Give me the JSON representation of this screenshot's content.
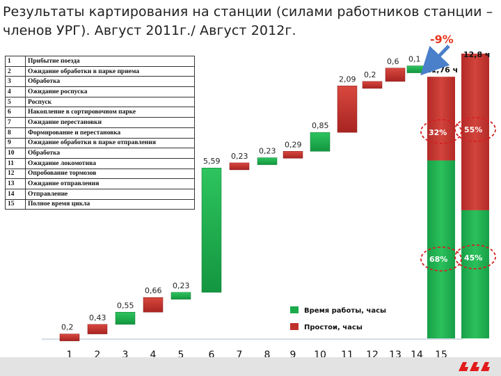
{
  "title": "Результаты картирования на станции (силами работников станции – членов УРГ). Август 2011г./ Август 2012г.",
  "steps_table": [
    {
      "num": "1",
      "label": "Прибытие поезда"
    },
    {
      "num": "2",
      "label": "Ожидание обработки в парке приема"
    },
    {
      "num": "3",
      "label": "Обработка"
    },
    {
      "num": "4",
      "label": "Ожидание роспуска"
    },
    {
      "num": "5",
      "label": "Роспуск"
    },
    {
      "num": "6",
      "label": "Накопление в сортировочном парке"
    },
    {
      "num": "7",
      "label": "Ожидание перестановки"
    },
    {
      "num": "8",
      "label": "Формирование и перестановка"
    },
    {
      "num": "9",
      "label": "Ожидание обработки в парке отправления"
    },
    {
      "num": "10",
      "label": "Обработка"
    },
    {
      "num": "11",
      "label": "Ожидание локомотива"
    },
    {
      "num": "12",
      "label": "Опробование тормозов"
    },
    {
      "num": "13",
      "label": "Ожидание отправления"
    },
    {
      "num": "14",
      "label": "Отправление"
    },
    {
      "num": "15",
      "label": "Полное время цикла"
    }
  ],
  "chart_data": {
    "type": "bar",
    "subtype": "waterfall",
    "categories": [
      "1",
      "2",
      "3",
      "4",
      "5",
      "6",
      "7",
      "8",
      "9",
      "10",
      "11",
      "12",
      "13",
      "14",
      "15"
    ],
    "steps": [
      {
        "x": "1",
        "value": 0.2,
        "label": "0,2",
        "kind": "idle"
      },
      {
        "x": "2",
        "value": 0.43,
        "label": "0,43",
        "kind": "idle"
      },
      {
        "x": "3",
        "value": 0.55,
        "label": "0,55",
        "kind": "work"
      },
      {
        "x": "4",
        "value": 0.66,
        "label": "0,66",
        "kind": "idle"
      },
      {
        "x": "5",
        "value": 0.23,
        "label": "0,23",
        "kind": "work"
      },
      {
        "x": "6",
        "value": 5.59,
        "label": "5,59",
        "kind": "work"
      },
      {
        "x": "7",
        "value": 0.23,
        "label": "0,23",
        "kind": "idle"
      },
      {
        "x": "8",
        "value": 0.23,
        "label": "0,23",
        "kind": "work"
      },
      {
        "x": "9",
        "value": 0.29,
        "label": "0,29",
        "kind": "idle"
      },
      {
        "x": "10",
        "value": 0.85,
        "label": "0,85",
        "kind": "work"
      },
      {
        "x": "11",
        "value": 2.09,
        "label": "2,09",
        "kind": "idle"
      },
      {
        "x": "12",
        "value": 0.2,
        "label": "0,2",
        "kind": "idle"
      },
      {
        "x": "13",
        "value": 0.6,
        "label": "0,6",
        "kind": "idle"
      },
      {
        "x": "14",
        "value": 0.1,
        "label": "0,1",
        "kind": "work"
      }
    ],
    "totals": [
      {
        "x": "15",
        "label": "12,8 ч",
        "work_pct": "45%",
        "idle_pct": "55%"
      },
      {
        "x": "15",
        "label": "11,76 ч",
        "work_pct": "68%",
        "idle_pct": "32%"
      }
    ],
    "change_label": "-9%",
    "legend": [
      {
        "kind": "work",
        "label": "Время работы, часы"
      },
      {
        "kind": "idle",
        "label": "Простои, часы"
      }
    ],
    "colors": {
      "work": "#1aab4b",
      "idle": "#c0302b",
      "idle_dark": "#9e1f1f",
      "arrow": "#4a7fc9",
      "circle": "#d42020"
    }
  }
}
